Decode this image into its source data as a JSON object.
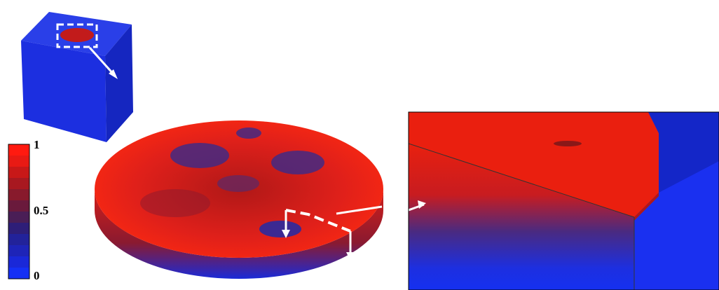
{
  "colorbar": {
    "labels": [
      "1",
      "0.5",
      "0"
    ]
  }
}
